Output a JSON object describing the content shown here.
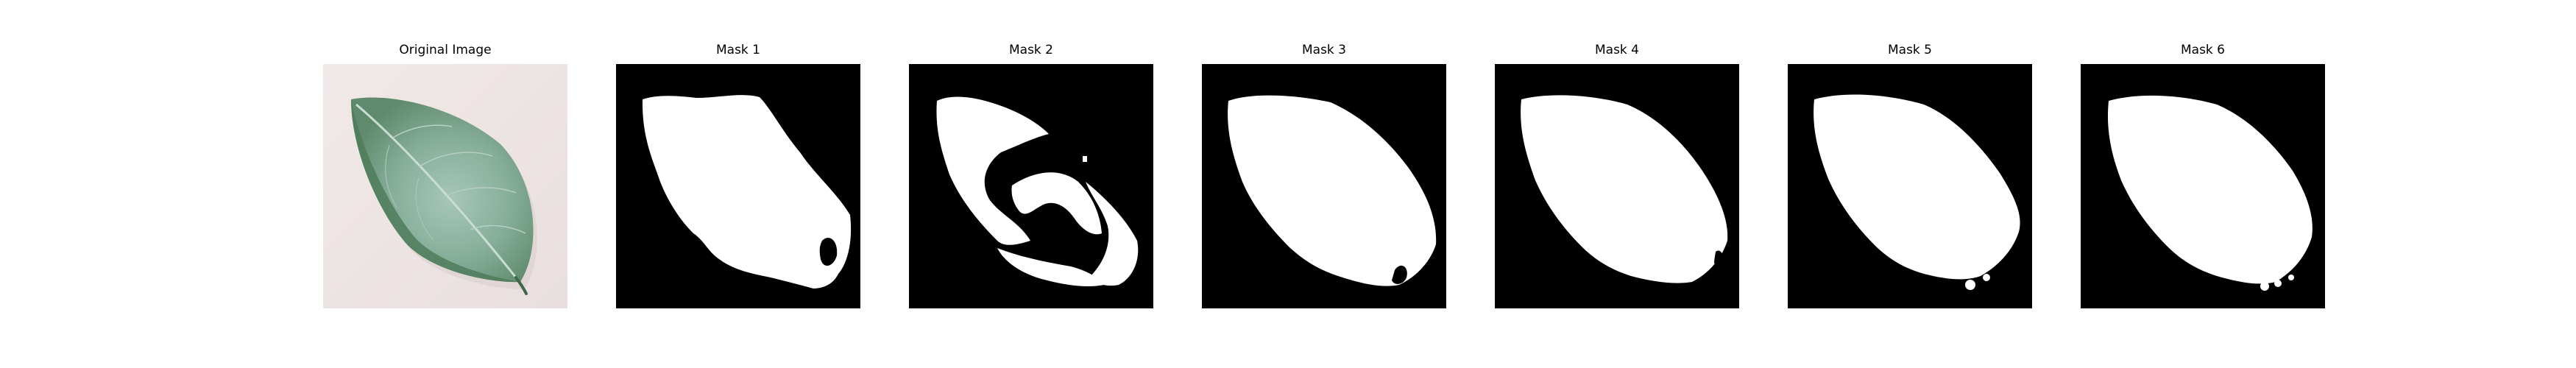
{
  "panels": [
    {
      "title": "Original Image",
      "kind": "photo",
      "subject": "green leaf on white surface"
    },
    {
      "title": "Mask 1",
      "kind": "mask"
    },
    {
      "title": "Mask 2",
      "kind": "mask"
    },
    {
      "title": "Mask 3",
      "kind": "mask"
    },
    {
      "title": "Mask 4",
      "kind": "mask"
    },
    {
      "title": "Mask 5",
      "kind": "mask"
    },
    {
      "title": "Mask 6",
      "kind": "mask"
    }
  ],
  "colors": {
    "background": "#ffffff",
    "mask_background": "#000000",
    "mask_foreground": "#ffffff",
    "leaf_light": "#8fb5a3",
    "leaf_dark": "#4f7c5a",
    "paper": "#ede4e3"
  }
}
